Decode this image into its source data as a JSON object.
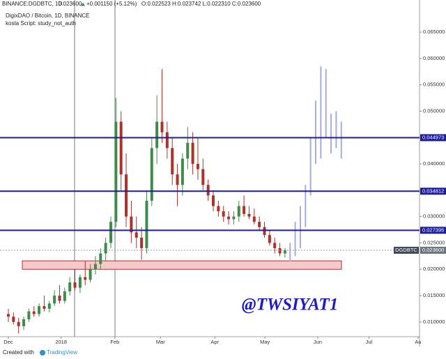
{
  "chart_data": {
    "type": "candlestick",
    "header": "BINANCE:DGDBTC, 1D",
    "last_text": "0.023600",
    "change": "+0.001150 (+5.12%)",
    "ohlc": "O:0.022523 H:0.023742 L:0.022310 C:0.023600",
    "title": "DigixDAO / Bitcoin, 1D, BINANCE",
    "subtitle": "kosta Script: study_not_auth",
    "annotation": "@TWSIYAT1",
    "footer": "Created with",
    "brand": "TradingView",
    "up_color": "#3d8c4a",
    "down_color": "#b0302a",
    "projection_color": "#a5addf",
    "level_color": "#1d1d9e",
    "zone_color": "#f6caca",
    "categories": [
      null,
      null,
      null,
      null,
      null,
      null,
      null,
      null,
      null,
      null,
      null,
      null,
      null,
      null,
      null,
      null,
      null,
      null,
      null,
      null,
      null,
      null,
      null,
      null,
      null,
      null,
      null,
      null,
      null,
      null,
      null,
      null,
      null,
      null,
      null,
      null,
      null,
      null,
      null,
      null,
      null,
      null,
      null,
      null,
      null,
      null,
      null,
      null,
      null,
      null,
      null,
      null,
      null,
      null,
      null,
      null,
      null,
      null,
      null,
      null,
      null,
      null,
      null,
      null,
      null,
      null
    ],
    "candles": [
      [
        0.0115,
        0.0125,
        0.01,
        0.011
      ],
      [
        0.011,
        0.0118,
        0.0095,
        0.01
      ],
      [
        0.01,
        0.0108,
        0.0078,
        0.0092
      ],
      [
        0.0092,
        0.011,
        0.0085,
        0.0105
      ],
      [
        0.0105,
        0.0125,
        0.01,
        0.012
      ],
      [
        0.012,
        0.013,
        0.011,
        0.0115
      ],
      [
        0.0115,
        0.0135,
        0.011,
        0.013
      ],
      [
        0.013,
        0.015,
        0.012,
        0.0125
      ],
      [
        0.0125,
        0.014,
        0.0118,
        0.0135
      ],
      [
        0.0135,
        0.016,
        0.013,
        0.015
      ],
      [
        0.015,
        0.017,
        0.0135,
        0.014
      ],
      [
        0.014,
        0.0165,
        0.0135,
        0.0158
      ],
      [
        0.0158,
        0.0185,
        0.015,
        0.0175
      ],
      [
        0.0175,
        0.02,
        0.016,
        0.0165
      ],
      [
        0.0165,
        0.019,
        0.0155,
        0.0185
      ],
      [
        0.0185,
        0.0215,
        0.017,
        0.018
      ],
      [
        0.018,
        0.021,
        0.0175,
        0.02
      ],
      [
        0.02,
        0.0225,
        0.019,
        0.021
      ],
      [
        0.021,
        0.024,
        0.02,
        0.023
      ],
      [
        0.023,
        0.026,
        0.0215,
        0.025
      ],
      [
        0.025,
        0.03,
        0.024,
        0.029
      ],
      [
        0.029,
        0.0525,
        0.028,
        0.048
      ],
      [
        0.048,
        0.05,
        0.035,
        0.038
      ],
      [
        0.038,
        0.042,
        0.028,
        0.03
      ],
      [
        0.03,
        0.033,
        0.025,
        0.027
      ],
      [
        0.027,
        0.03,
        0.024,
        0.026
      ],
      [
        0.026,
        0.028,
        0.0218,
        0.024
      ],
      [
        0.024,
        0.035,
        0.023,
        0.033
      ],
      [
        0.033,
        0.045,
        0.032,
        0.043
      ],
      [
        0.043,
        0.053,
        0.04,
        0.048
      ],
      [
        0.048,
        0.058,
        0.044,
        0.046
      ],
      [
        0.046,
        0.048,
        0.041,
        0.043
      ],
      [
        0.043,
        0.045,
        0.036,
        0.038
      ],
      [
        0.038,
        0.04,
        0.032,
        0.036
      ],
      [
        0.036,
        0.042,
        0.034,
        0.041
      ],
      [
        0.041,
        0.047,
        0.039,
        0.044
      ],
      [
        0.044,
        0.046,
        0.038,
        0.04
      ],
      [
        0.04,
        0.045,
        0.037,
        0.039
      ],
      [
        0.039,
        0.041,
        0.035,
        0.036
      ],
      [
        0.036,
        0.037,
        0.033,
        0.034
      ],
      [
        0.034,
        0.035,
        0.031,
        0.032
      ],
      [
        0.032,
        0.033,
        0.03,
        0.031
      ],
      [
        0.031,
        0.032,
        0.029,
        0.03
      ],
      [
        0.03,
        0.031,
        0.0285,
        0.0295
      ],
      [
        0.0295,
        0.031,
        0.0285,
        0.03
      ],
      [
        0.03,
        0.033,
        0.029,
        0.032
      ],
      [
        0.032,
        0.034,
        0.03,
        0.0305
      ],
      [
        0.0305,
        0.032,
        0.0295,
        0.03
      ],
      [
        0.03,
        0.0315,
        0.0285,
        0.029
      ],
      [
        0.029,
        0.03,
        0.0275,
        0.028
      ],
      [
        0.028,
        0.029,
        0.026,
        0.0265
      ],
      [
        0.0265,
        0.0275,
        0.0245,
        0.025
      ],
      [
        0.025,
        0.026,
        0.023,
        0.024
      ],
      [
        0.024,
        0.025,
        0.0225,
        0.023
      ],
      [
        0.023,
        0.024,
        0.0222,
        0.0236
      ],
      null,
      null,
      null,
      null,
      null,
      null,
      null,
      null,
      null,
      null,
      null
    ],
    "projection": [
      null,
      null,
      null,
      null,
      null,
      null,
      null,
      null,
      null,
      null,
      null,
      null,
      null,
      null,
      null,
      null,
      null,
      null,
      null,
      null,
      null,
      null,
      null,
      null,
      null,
      null,
      null,
      null,
      null,
      null,
      null,
      null,
      null,
      null,
      null,
      null,
      null,
      null,
      null,
      null,
      null,
      null,
      null,
      null,
      null,
      null,
      null,
      null,
      null,
      null,
      null,
      null,
      null,
      null,
      null,
      [
        0.0215,
        0.025
      ],
      [
        0.0225,
        0.029
      ],
      [
        0.024,
        0.032
      ],
      [
        0.028,
        0.036
      ],
      [
        0.034,
        0.045
      ],
      [
        0.04,
        0.052
      ],
      [
        0.041,
        0.0585
      ],
      [
        0.045,
        0.058
      ],
      [
        0.042,
        0.0495
      ],
      [
        0.043,
        0.05
      ],
      [
        0.041,
        0.048
      ]
    ],
    "levels": [
      {
        "value": 0.044973,
        "label": "0.044973"
      },
      {
        "value": 0.034812,
        "label": "0.034812"
      },
      {
        "value": 0.027395,
        "label": "0.027395"
      }
    ],
    "last_price": {
      "value": 0.0236,
      "label": "0.023600",
      "symbol": "DGDBTC"
    },
    "zone": [
      0.02,
      0.0216
    ],
    "ylim": [
      0.0072,
      0.0711
    ],
    "yticks": [
      {
        "value": 0.01,
        "label": "0.010000"
      },
      {
        "value": 0.015,
        "label": "0.015000"
      },
      {
        "value": 0.02,
        "label": "0.020000"
      },
      {
        "value": 0.025,
        "label": "0.025000"
      },
      {
        "value": 0.03,
        "label": "0.030000"
      },
      {
        "value": 0.035,
        "label": "0.035000"
      },
      {
        "value": 0.04,
        "label": "0.040000"
      },
      {
        "value": 0.045,
        "label": "0.045000"
      },
      {
        "value": 0.05,
        "label": "0.050000"
      },
      {
        "value": 0.055,
        "label": "0.055000"
      },
      {
        "value": 0.06,
        "label": "0.060000"
      },
      {
        "value": 0.065,
        "label": "0.065000"
      }
    ],
    "xlim": [
      -1.63,
      80.27
    ],
    "xticks": [
      {
        "value": 0,
        "label": "Dec"
      },
      {
        "value": 10.3,
        "label": "2018"
      },
      {
        "value": 20.8,
        "label": "Feb"
      },
      {
        "value": 29.7,
        "label": "Mar"
      },
      {
        "value": 40.3,
        "label": "Apr"
      },
      {
        "value": 50.1,
        "label": "May"
      },
      {
        "value": 60.4,
        "label": "Jun"
      },
      {
        "value": 70.4,
        "label": "Jul"
      },
      {
        "value": 80.0,
        "label": "Au"
      }
    ],
    "grid": false
  }
}
